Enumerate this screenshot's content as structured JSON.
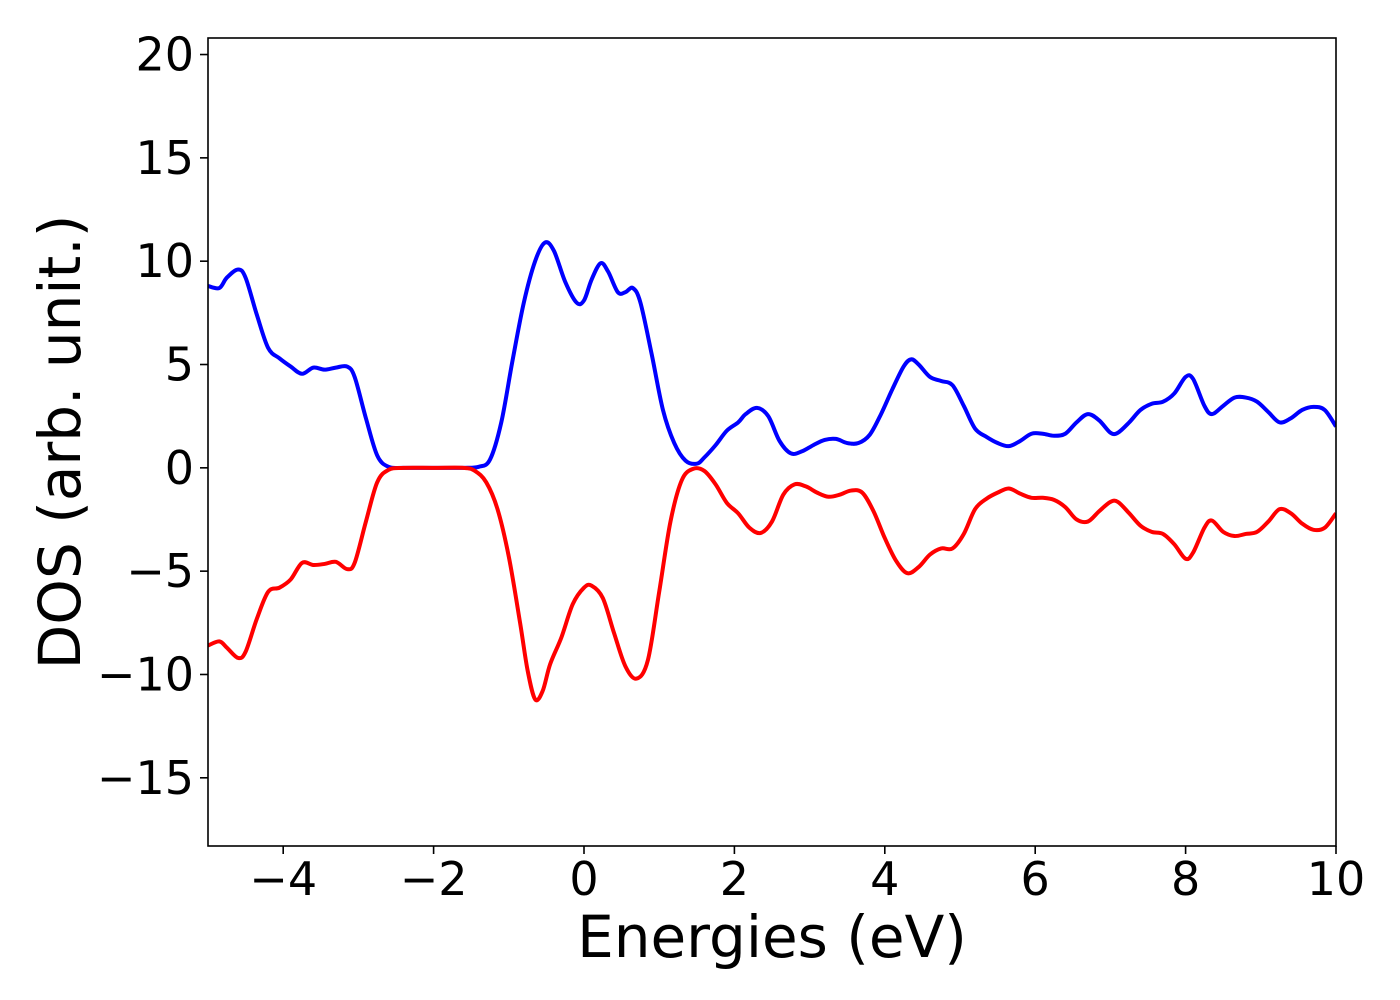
{
  "chart_data": {
    "type": "line",
    "title": "",
    "xlabel": "Energies (eV)",
    "ylabel": "DOS (arb. unit.)",
    "xlim": [
      -5,
      10
    ],
    "ylim": [
      -18.3,
      20.8
    ],
    "xticks": [
      -4,
      -2,
      0,
      2,
      4,
      6,
      8,
      10
    ],
    "xtick_labels": [
      "−4",
      "−2",
      "0",
      "2",
      "4",
      "6",
      "8",
      "10"
    ],
    "yticks": [
      -15,
      -10,
      -5,
      0,
      5,
      10,
      15,
      20
    ],
    "ytick_labels": [
      "−15",
      "−10",
      "−5",
      "0",
      "5",
      "10",
      "15",
      "20"
    ],
    "grid": false,
    "legend": "none",
    "series": [
      {
        "color": "#0000ff",
        "points": [
          [
            -5.0,
            8.8
          ],
          [
            -4.85,
            8.7
          ],
          [
            -4.75,
            9.2
          ],
          [
            -4.6,
            9.6
          ],
          [
            -4.5,
            9.2
          ],
          [
            -4.35,
            7.4
          ],
          [
            -4.2,
            5.8
          ],
          [
            -4.05,
            5.3
          ],
          [
            -3.9,
            4.9
          ],
          [
            -3.75,
            4.55
          ],
          [
            -3.6,
            4.85
          ],
          [
            -3.45,
            4.75
          ],
          [
            -3.3,
            4.85
          ],
          [
            -3.15,
            4.9
          ],
          [
            -3.05,
            4.4
          ],
          [
            -2.9,
            2.4
          ],
          [
            -2.75,
            0.6
          ],
          [
            -2.6,
            0.05
          ],
          [
            -2.4,
            0.0
          ],
          [
            -2.0,
            0.0
          ],
          [
            -1.6,
            0.0
          ],
          [
            -1.4,
            0.05
          ],
          [
            -1.25,
            0.4
          ],
          [
            -1.1,
            2.2
          ],
          [
            -0.95,
            5.2
          ],
          [
            -0.8,
            8.0
          ],
          [
            -0.65,
            10.0
          ],
          [
            -0.52,
            10.9
          ],
          [
            -0.4,
            10.5
          ],
          [
            -0.25,
            9.0
          ],
          [
            -0.1,
            8.0
          ],
          [
            0.0,
            8.1
          ],
          [
            0.1,
            9.1
          ],
          [
            0.22,
            9.9
          ],
          [
            0.32,
            9.5
          ],
          [
            0.45,
            8.5
          ],
          [
            0.55,
            8.5
          ],
          [
            0.65,
            8.7
          ],
          [
            0.75,
            8.0
          ],
          [
            0.9,
            5.5
          ],
          [
            1.05,
            2.8
          ],
          [
            1.2,
            1.2
          ],
          [
            1.35,
            0.35
          ],
          [
            1.5,
            0.2
          ],
          [
            1.6,
            0.5
          ],
          [
            1.75,
            1.1
          ],
          [
            1.9,
            1.8
          ],
          [
            2.05,
            2.2
          ],
          [
            2.15,
            2.6
          ],
          [
            2.3,
            2.9
          ],
          [
            2.45,
            2.5
          ],
          [
            2.6,
            1.3
          ],
          [
            2.75,
            0.7
          ],
          [
            2.9,
            0.8
          ],
          [
            3.05,
            1.1
          ],
          [
            3.2,
            1.35
          ],
          [
            3.35,
            1.4
          ],
          [
            3.5,
            1.2
          ],
          [
            3.65,
            1.2
          ],
          [
            3.8,
            1.6
          ],
          [
            3.95,
            2.6
          ],
          [
            4.1,
            3.8
          ],
          [
            4.25,
            4.9
          ],
          [
            4.35,
            5.25
          ],
          [
            4.45,
            5.0
          ],
          [
            4.6,
            4.4
          ],
          [
            4.75,
            4.2
          ],
          [
            4.9,
            4.0
          ],
          [
            5.05,
            3.0
          ],
          [
            5.2,
            1.9
          ],
          [
            5.35,
            1.5
          ],
          [
            5.5,
            1.2
          ],
          [
            5.65,
            1.05
          ],
          [
            5.8,
            1.3
          ],
          [
            5.95,
            1.65
          ],
          [
            6.1,
            1.65
          ],
          [
            6.25,
            1.55
          ],
          [
            6.4,
            1.65
          ],
          [
            6.55,
            2.2
          ],
          [
            6.7,
            2.6
          ],
          [
            6.85,
            2.3
          ],
          [
            7.0,
            1.7
          ],
          [
            7.1,
            1.7
          ],
          [
            7.25,
            2.2
          ],
          [
            7.4,
            2.8
          ],
          [
            7.55,
            3.1
          ],
          [
            7.7,
            3.2
          ],
          [
            7.85,
            3.6
          ],
          [
            8.0,
            4.4
          ],
          [
            8.1,
            4.3
          ],
          [
            8.25,
            3.0
          ],
          [
            8.35,
            2.6
          ],
          [
            8.5,
            3.0
          ],
          [
            8.65,
            3.4
          ],
          [
            8.8,
            3.4
          ],
          [
            8.95,
            3.2
          ],
          [
            9.1,
            2.7
          ],
          [
            9.25,
            2.2
          ],
          [
            9.4,
            2.4
          ],
          [
            9.55,
            2.8
          ],
          [
            9.7,
            2.95
          ],
          [
            9.85,
            2.8
          ],
          [
            10.0,
            2.0
          ]
        ]
      },
      {
        "color": "#ff0000",
        "points": [
          [
            -5.0,
            -8.6
          ],
          [
            -4.85,
            -8.4
          ],
          [
            -4.75,
            -8.7
          ],
          [
            -4.6,
            -9.2
          ],
          [
            -4.5,
            -8.9
          ],
          [
            -4.35,
            -7.3
          ],
          [
            -4.2,
            -6.0
          ],
          [
            -4.05,
            -5.8
          ],
          [
            -3.9,
            -5.4
          ],
          [
            -3.75,
            -4.6
          ],
          [
            -3.6,
            -4.7
          ],
          [
            -3.45,
            -4.65
          ],
          [
            -3.3,
            -4.55
          ],
          [
            -3.15,
            -4.9
          ],
          [
            -3.05,
            -4.6
          ],
          [
            -2.9,
            -2.6
          ],
          [
            -2.75,
            -0.7
          ],
          [
            -2.6,
            -0.1
          ],
          [
            -2.4,
            0.0
          ],
          [
            -2.0,
            0.0
          ],
          [
            -1.6,
            0.0
          ],
          [
            -1.45,
            -0.15
          ],
          [
            -1.3,
            -0.7
          ],
          [
            -1.15,
            -2.0
          ],
          [
            -1.0,
            -4.3
          ],
          [
            -0.85,
            -7.5
          ],
          [
            -0.75,
            -9.8
          ],
          [
            -0.65,
            -11.2
          ],
          [
            -0.55,
            -10.8
          ],
          [
            -0.45,
            -9.5
          ],
          [
            -0.3,
            -8.2
          ],
          [
            -0.15,
            -6.6
          ],
          [
            0.0,
            -5.8
          ],
          [
            0.1,
            -5.7
          ],
          [
            0.25,
            -6.3
          ],
          [
            0.4,
            -8.0
          ],
          [
            0.55,
            -9.6
          ],
          [
            0.7,
            -10.2
          ],
          [
            0.85,
            -9.3
          ],
          [
            1.0,
            -6.0
          ],
          [
            1.15,
            -2.6
          ],
          [
            1.3,
            -0.6
          ],
          [
            1.45,
            -0.05
          ],
          [
            1.6,
            -0.15
          ],
          [
            1.75,
            -0.8
          ],
          [
            1.9,
            -1.7
          ],
          [
            2.05,
            -2.2
          ],
          [
            2.2,
            -2.9
          ],
          [
            2.35,
            -3.15
          ],
          [
            2.5,
            -2.6
          ],
          [
            2.65,
            -1.3
          ],
          [
            2.8,
            -0.8
          ],
          [
            2.95,
            -0.9
          ],
          [
            3.1,
            -1.2
          ],
          [
            3.25,
            -1.4
          ],
          [
            3.4,
            -1.3
          ],
          [
            3.55,
            -1.1
          ],
          [
            3.7,
            -1.2
          ],
          [
            3.85,
            -2.1
          ],
          [
            4.0,
            -3.4
          ],
          [
            4.15,
            -4.5
          ],
          [
            4.3,
            -5.1
          ],
          [
            4.45,
            -4.8
          ],
          [
            4.6,
            -4.2
          ],
          [
            4.75,
            -3.9
          ],
          [
            4.9,
            -3.9
          ],
          [
            5.05,
            -3.2
          ],
          [
            5.2,
            -2.0
          ],
          [
            5.35,
            -1.5
          ],
          [
            5.5,
            -1.2
          ],
          [
            5.65,
            -1.0
          ],
          [
            5.8,
            -1.25
          ],
          [
            5.95,
            -1.45
          ],
          [
            6.1,
            -1.45
          ],
          [
            6.25,
            -1.55
          ],
          [
            6.4,
            -1.9
          ],
          [
            6.55,
            -2.5
          ],
          [
            6.7,
            -2.6
          ],
          [
            6.85,
            -2.1
          ],
          [
            7.0,
            -1.65
          ],
          [
            7.1,
            -1.65
          ],
          [
            7.25,
            -2.2
          ],
          [
            7.4,
            -2.8
          ],
          [
            7.55,
            -3.1
          ],
          [
            7.7,
            -3.2
          ],
          [
            7.85,
            -3.7
          ],
          [
            8.0,
            -4.4
          ],
          [
            8.1,
            -4.1
          ],
          [
            8.25,
            -2.9
          ],
          [
            8.35,
            -2.55
          ],
          [
            8.5,
            -3.1
          ],
          [
            8.65,
            -3.3
          ],
          [
            8.8,
            -3.2
          ],
          [
            8.95,
            -3.1
          ],
          [
            9.1,
            -2.6
          ],
          [
            9.25,
            -2.0
          ],
          [
            9.4,
            -2.2
          ],
          [
            9.55,
            -2.7
          ],
          [
            9.7,
            -3.0
          ],
          [
            9.85,
            -2.9
          ],
          [
            10.0,
            -2.2
          ]
        ]
      }
    ]
  }
}
